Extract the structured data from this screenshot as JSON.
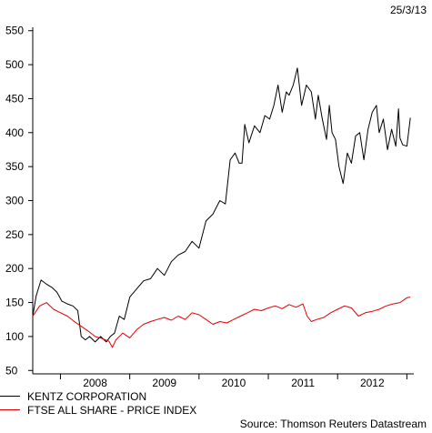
{
  "date_stamp": "25/3/13",
  "source": "Source: Thomson Reuters Datastream",
  "chart_data": {
    "type": "line",
    "ylim": [
      45,
      555
    ],
    "xlim": [
      2007.6,
      2013.1
    ],
    "yticks": [
      50,
      100,
      150,
      200,
      250,
      300,
      350,
      400,
      450,
      500,
      550
    ],
    "xticks": [
      "2008",
      "2009",
      "2010",
      "2011",
      "2012"
    ],
    "grid": false,
    "legend": "bottom-left",
    "series": [
      {
        "name": "KENTZ CORPORATION",
        "color": "#000000",
        "x": [
          2007.6,
          2007.65,
          2007.72,
          2007.8,
          2007.88,
          2007.95,
          2008.02,
          2008.1,
          2008.18,
          2008.25,
          2008.3,
          2008.36,
          2008.42,
          2008.5,
          2008.58,
          2008.66,
          2008.72,
          2008.78,
          2008.85,
          2008.92,
          2009.0,
          2009.1,
          2009.2,
          2009.3,
          2009.4,
          2009.5,
          2009.6,
          2009.7,
          2009.8,
          2009.9,
          2010.0,
          2010.1,
          2010.2,
          2010.3,
          2010.38,
          2010.45,
          2010.52,
          2010.58,
          2010.62,
          2010.66,
          2010.72,
          2010.8,
          2010.88,
          2010.95,
          2011.02,
          2011.08,
          2011.14,
          2011.2,
          2011.26,
          2011.3,
          2011.36,
          2011.42,
          2011.48,
          2011.55,
          2011.62,
          2011.68,
          2011.72,
          2011.78,
          2011.84,
          2011.88,
          2011.92,
          2011.97,
          2012.02,
          2012.08,
          2012.14,
          2012.2,
          2012.26,
          2012.32,
          2012.38,
          2012.44,
          2012.5,
          2012.56,
          2012.6,
          2012.66,
          2012.72,
          2012.78,
          2012.84,
          2012.88,
          2012.9,
          2012.94,
          2013.0,
          2013.05
        ],
        "values": [
          130,
          160,
          183,
          177,
          172,
          165,
          152,
          148,
          145,
          138,
          100,
          95,
          100,
          92,
          100,
          92,
          100,
          105,
          130,
          125,
          158,
          170,
          182,
          185,
          200,
          190,
          210,
          220,
          225,
          240,
          230,
          270,
          280,
          300,
          295,
          360,
          370,
          355,
          355,
          412,
          385,
          410,
          400,
          425,
          420,
          440,
          470,
          430,
          460,
          455,
          470,
          495,
          440,
          470,
          460,
          420,
          455,
          420,
          390,
          440,
          400,
          390,
          350,
          325,
          370,
          355,
          395,
          400,
          360,
          405,
          430,
          440,
          400,
          420,
          375,
          405,
          380,
          435,
          392,
          382,
          380,
          422
        ]
      },
      {
        "name": "FTSE ALL SHARE - PRICE INDEX",
        "color": "#e00000",
        "x": [
          2007.6,
          2007.7,
          2007.8,
          2007.9,
          2008.0,
          2008.1,
          2008.2,
          2008.3,
          2008.4,
          2008.5,
          2008.6,
          2008.7,
          2008.75,
          2008.8,
          2008.9,
          2009.0,
          2009.1,
          2009.2,
          2009.3,
          2009.4,
          2009.5,
          2009.6,
          2009.7,
          2009.8,
          2009.9,
          2010.0,
          2010.1,
          2010.2,
          2010.3,
          2010.4,
          2010.5,
          2010.6,
          2010.7,
          2010.8,
          2010.9,
          2011.0,
          2011.1,
          2011.2,
          2011.3,
          2011.4,
          2011.5,
          2011.56,
          2011.62,
          2011.7,
          2011.8,
          2011.9,
          2012.0,
          2012.1,
          2012.2,
          2012.3,
          2012.4,
          2012.5,
          2012.6,
          2012.7,
          2012.8,
          2012.9,
          2013.0,
          2013.05
        ],
        "values": [
          130,
          145,
          150,
          140,
          135,
          130,
          122,
          115,
          108,
          100,
          97,
          93,
          84,
          95,
          105,
          98,
          110,
          118,
          122,
          125,
          128,
          124,
          130,
          125,
          135,
          132,
          125,
          118,
          122,
          120,
          125,
          130,
          135,
          140,
          138,
          142,
          145,
          141,
          147,
          143,
          148,
          130,
          122,
          125,
          128,
          135,
          140,
          145,
          142,
          130,
          135,
          137,
          140,
          145,
          148,
          150,
          157,
          158
        ]
      }
    ]
  }
}
